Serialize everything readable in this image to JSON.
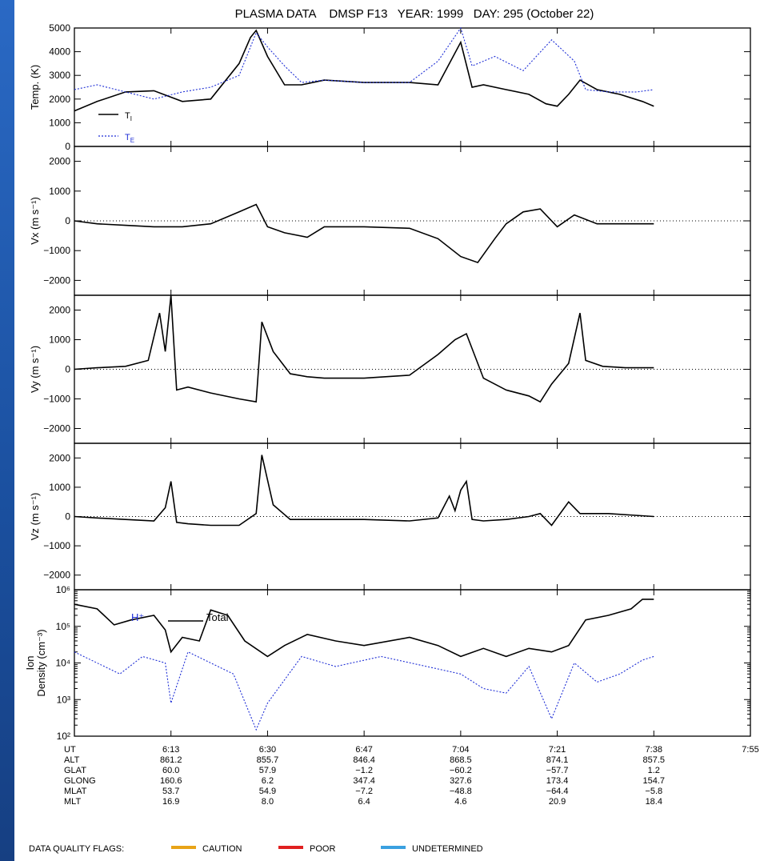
{
  "title": "PLASMA DATA    DMSP F13   YEAR: 1999   DAY: 295 (October 22)",
  "colors": {
    "ti": "#000000",
    "te": "#1f2fd6",
    "hplus": "#1f2fd6",
    "caution": "#e8a317",
    "poor": "#e02020",
    "undetermined": "#3aa0e0",
    "background": "#1a4f9e"
  },
  "panels": [
    {
      "id": "temp",
      "ylabel": "Temp. (K)",
      "ylim": [
        0,
        5000
      ],
      "yticks": [
        "5000",
        "4000",
        "3000",
        "2000",
        "1000",
        "0"
      ],
      "legend": {
        "ti": "T",
        "ti_sub": "I",
        "te": "T",
        "te_sub": "E"
      }
    },
    {
      "id": "vx",
      "ylabel": "Vx (m s⁻¹)",
      "ylim": [
        -2500,
        2500
      ],
      "yticks": [
        "2000",
        "1000",
        "0",
        "−1000",
        "−2000"
      ]
    },
    {
      "id": "vy",
      "ylabel": "Vy (m s⁻¹)",
      "ylim": [
        -2500,
        2500
      ],
      "yticks": [
        "2000",
        "1000",
        "0",
        "−1000",
        "−2000"
      ]
    },
    {
      "id": "vz",
      "ylabel": "Vz (m s⁻¹)",
      "ylim": [
        -2500,
        2500
      ],
      "yticks": [
        "2000",
        "1000",
        "0",
        "−1000",
        "−2000"
      ]
    },
    {
      "id": "dens",
      "ylabel_1": "Ion",
      "ylabel_2": "Density (cm⁻³)",
      "ylim": [
        100,
        1000000
      ],
      "yticks": [
        "10⁶",
        "10⁵",
        "10⁴",
        "10³",
        "10²"
      ],
      "legend": {
        "hplus": "H⁺",
        "total": "Total"
      }
    }
  ],
  "xaxis": {
    "row_labels": [
      "UT",
      "ALT",
      "GLAT",
      "GLONG",
      "MLAT",
      "MLT"
    ],
    "columns": [
      {
        "UT": "6:13",
        "ALT": "861.2",
        "GLAT": "60.0",
        "GLONG": "160.6",
        "MLAT": "53.7",
        "MLT": "16.9"
      },
      {
        "UT": "6:30",
        "ALT": "855.7",
        "GLAT": "57.9",
        "GLONG": "6.2",
        "MLAT": "54.9",
        "MLT": "8.0"
      },
      {
        "UT": "6:47",
        "ALT": "846.4",
        "GLAT": "−1.2",
        "GLONG": "347.4",
        "MLAT": "−7.2",
        "MLT": "6.4"
      },
      {
        "UT": "7:04",
        "ALT": "868.5",
        "GLAT": "−60.2",
        "GLONG": "327.6",
        "MLAT": "−48.8",
        "MLT": "4.6"
      },
      {
        "UT": "7:21",
        "ALT": "874.1",
        "GLAT": "−57.7",
        "GLONG": "173.4",
        "MLAT": "−64.4",
        "MLT": "20.9"
      },
      {
        "UT": "7:38",
        "ALT": "857.5",
        "GLAT": "1.2",
        "GLONG": "154.7",
        "MLAT": "−5.8",
        "MLT": "18.4"
      }
    ],
    "final_ut": "7:55"
  },
  "quality_legend": {
    "label": "DATA QUALITY FLAGS:",
    "caution": "CAUTION",
    "poor": "POOR",
    "undetermined": "UNDETERMINED"
  },
  "chart_data": {
    "type": "line",
    "x_unit": "UT minutes",
    "xlim": [
      "5:56",
      "7:55"
    ],
    "series": [
      {
        "panel": "temp",
        "name": "T_I",
        "x": [
          "5:56",
          "6:00",
          "6:05",
          "6:10",
          "6:15",
          "6:20",
          "6:25",
          "6:27",
          "6:28",
          "6:30",
          "6:33",
          "6:36",
          "6:40",
          "6:47",
          "6:55",
          "7:00",
          "7:04",
          "7:06",
          "7:08",
          "7:12",
          "7:16",
          "7:19",
          "7:21",
          "7:23",
          "7:25",
          "7:28",
          "7:32",
          "7:36",
          "7:38"
        ],
        "y": [
          1500,
          1900,
          2300,
          2350,
          1900,
          2000,
          3500,
          4600,
          4900,
          3800,
          2600,
          2600,
          2800,
          2700,
          2700,
          2600,
          4400,
          2500,
          2600,
          2400,
          2200,
          1800,
          1700,
          2200,
          2800,
          2400,
          2200,
          1900,
          1700
        ]
      },
      {
        "panel": "temp",
        "name": "T_E",
        "x": [
          "5:56",
          "6:00",
          "6:05",
          "6:10",
          "6:15",
          "6:20",
          "6:25",
          "6:28",
          "6:30",
          "6:33",
          "6:36",
          "6:40",
          "6:47",
          "6:55",
          "7:00",
          "7:04",
          "7:06",
          "7:10",
          "7:15",
          "7:20",
          "7:24",
          "7:26",
          "7:30",
          "7:35",
          "7:38"
        ],
        "y": [
          2400,
          2600,
          2300,
          2000,
          2300,
          2500,
          3000,
          4800,
          4200,
          3400,
          2700,
          2800,
          2700,
          2700,
          3600,
          5000,
          3400,
          3800,
          3200,
          4500,
          3600,
          2400,
          2300,
          2300,
          2400
        ]
      },
      {
        "panel": "vx",
        "name": "Vx",
        "x": [
          "5:56",
          "6:00",
          "6:05",
          "6:10",
          "6:15",
          "6:20",
          "6:25",
          "6:28",
          "6:30",
          "6:33",
          "6:37",
          "6:40",
          "6:47",
          "6:55",
          "7:00",
          "7:04",
          "7:07",
          "7:10",
          "7:12",
          "7:15",
          "7:18",
          "7:21",
          "7:24",
          "7:28",
          "7:32",
          "7:38"
        ],
        "y": [
          0,
          -100,
          -150,
          -200,
          -200,
          -100,
          300,
          550,
          -200,
          -400,
          -550,
          -200,
          -200,
          -250,
          -600,
          -1200,
          -1400,
          -600,
          -100,
          300,
          400,
          -200,
          200,
          -100,
          -100,
          -100
        ]
      },
      {
        "panel": "vy",
        "name": "Vy",
        "x": [
          "5:56",
          "6:00",
          "6:05",
          "6:09",
          "6:11",
          "6:12",
          "6:13",
          "6:14",
          "6:16",
          "6:20",
          "6:25",
          "6:28",
          "6:29",
          "6:31",
          "6:34",
          "6:37",
          "6:40",
          "6:47",
          "6:55",
          "7:00",
          "7:03",
          "7:05",
          "7:08",
          "7:12",
          "7:16",
          "7:18",
          "7:20",
          "7:23",
          "7:25",
          "7:26",
          "7:29",
          "7:33",
          "7:38"
        ],
        "y": [
          0,
          50,
          100,
          300,
          1900,
          600,
          2500,
          -700,
          -600,
          -800,
          -1000,
          -1100,
          1600,
          600,
          -150,
          -250,
          -300,
          -300,
          -200,
          500,
          1000,
          1200,
          -300,
          -700,
          -900,
          -1100,
          -500,
          200,
          1900,
          300,
          100,
          50,
          50
        ]
      },
      {
        "panel": "vz",
        "name": "Vz",
        "x": [
          "5:56",
          "6:00",
          "6:05",
          "6:10",
          "6:12",
          "6:13",
          "6:14",
          "6:16",
          "6:20",
          "6:25",
          "6:28",
          "6:29",
          "6:31",
          "6:34",
          "6:40",
          "6:47",
          "6:55",
          "7:00",
          "7:02",
          "7:03",
          "7:04",
          "7:05",
          "7:06",
          "7:08",
          "7:12",
          "7:16",
          "7:18",
          "7:20",
          "7:23",
          "7:25",
          "7:30",
          "7:38"
        ],
        "y": [
          0,
          -50,
          -100,
          -150,
          300,
          1200,
          -200,
          -250,
          -300,
          -300,
          100,
          2100,
          400,
          -100,
          -100,
          -100,
          -150,
          -50,
          700,
          200,
          900,
          1200,
          -100,
          -150,
          -100,
          0,
          100,
          -300,
          500,
          100,
          100,
          0
        ]
      },
      {
        "panel": "dens",
        "name": "Total",
        "x": [
          "5:56",
          "6:00",
          "6:03",
          "6:06",
          "6:10",
          "6:12",
          "6:13",
          "6:15",
          "6:18",
          "6:20",
          "6:23",
          "6:26",
          "6:30",
          "6:33",
          "6:37",
          "6:42",
          "6:47",
          "6:55",
          "7:00",
          "7:04",
          "7:08",
          "7:12",
          "7:16",
          "7:20",
          "7:23",
          "7:26",
          "7:30",
          "7:34",
          "7:36",
          "7:38"
        ],
        "y": [
          400000,
          300000,
          110000,
          150000,
          200000,
          80000,
          20000,
          50000,
          40000,
          280000,
          200000,
          40000,
          15000,
          30000,
          60000,
          40000,
          30000,
          50000,
          30000,
          15000,
          25000,
          15000,
          25000,
          20000,
          30000,
          150000,
          200000,
          300000,
          550000,
          550000
        ]
      },
      {
        "panel": "dens",
        "name": "H+",
        "x": [
          "5:56",
          "6:00",
          "6:04",
          "6:08",
          "6:12",
          "6:13",
          "6:16",
          "6:20",
          "6:24",
          "6:28",
          "6:30",
          "6:36",
          "6:42",
          "6:50",
          "6:58",
          "7:04",
          "7:08",
          "7:12",
          "7:16",
          "7:20",
          "7:24",
          "7:28",
          "7:32",
          "7:36",
          "7:38"
        ],
        "y": [
          20000,
          10000,
          5000,
          15000,
          10000,
          800,
          20000,
          10000,
          5000,
          150,
          800,
          15000,
          8000,
          15000,
          8000,
          5000,
          2000,
          1500,
          8000,
          300,
          10000,
          3000,
          5000,
          12000,
          15000
        ]
      }
    ]
  }
}
